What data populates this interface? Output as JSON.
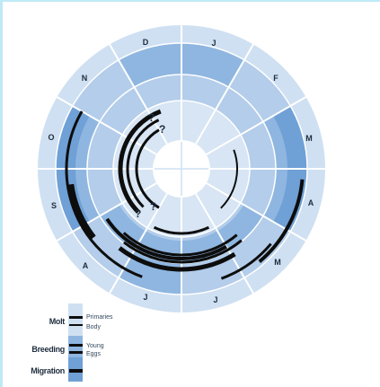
{
  "colors": {
    "outer_light": "#cfe0f2",
    "ring_medium": "#8eb6e0",
    "ring_dark": "#6fa0d6",
    "ring_light": "#b3cdea",
    "inner_light": "#d7e5f4",
    "center": "#ffffff",
    "dividers": "#ffffff",
    "bars": "#0d0d0d"
  },
  "months": [
    "J",
    "F",
    "M",
    "A",
    "M",
    "J",
    "J",
    "A",
    "S",
    "O",
    "N",
    "D"
  ],
  "question_marks": [
    "?",
    "?",
    "?",
    "?"
  ],
  "legend": {
    "molt": {
      "label": "Molt",
      "primaries": "Primaries",
      "body": "Body"
    },
    "breeding": {
      "label": "Breeding",
      "young": "Young",
      "eggs": "Eggs"
    },
    "migration": {
      "label": "Migration"
    }
  }
}
